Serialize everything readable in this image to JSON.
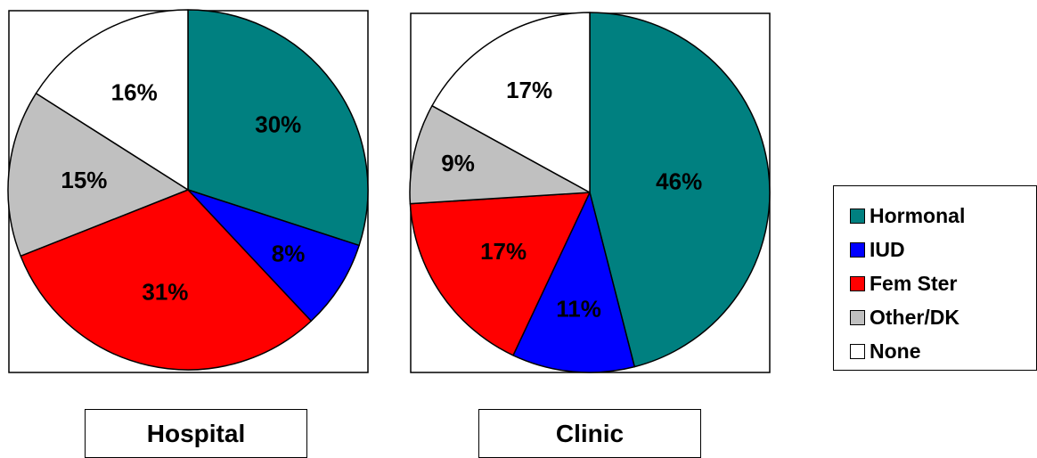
{
  "colors": {
    "Hormonal": "#008080",
    "IUD": "#0000ff",
    "Fem Ster": "#ff0000",
    "Other/DK": "#c0c0c0",
    "None": "#ffffff"
  },
  "chart_data": [
    {
      "type": "pie",
      "caption": "Hospital",
      "start_angle_deg": 0,
      "direction": "clockwise",
      "slices": [
        {
          "name": "Hormonal",
          "value": 30,
          "label": "30%"
        },
        {
          "name": "IUD",
          "value": 8,
          "label": "8%"
        },
        {
          "name": "Fem Ster",
          "value": 31,
          "label": "31%"
        },
        {
          "name": "Other/DK",
          "value": 15,
          "label": "15%"
        },
        {
          "name": "None",
          "value": 16,
          "label": "16%"
        }
      ]
    },
    {
      "type": "pie",
      "caption": "Clinic",
      "start_angle_deg": 0,
      "direction": "clockwise",
      "slices": [
        {
          "name": "Hormonal",
          "value": 46,
          "label": "46%"
        },
        {
          "name": "IUD",
          "value": 11,
          "label": "11%"
        },
        {
          "name": "Fem Ster",
          "value": 17,
          "label": "17%"
        },
        {
          "name": "Other/DK",
          "value": 9,
          "label": "9%"
        },
        {
          "name": "None",
          "value": 17,
          "label": "17%"
        }
      ]
    }
  ],
  "legend": {
    "position": "right",
    "items": [
      "Hormonal",
      "IUD",
      "Fem Ster",
      "Other/DK",
      "None"
    ]
  }
}
